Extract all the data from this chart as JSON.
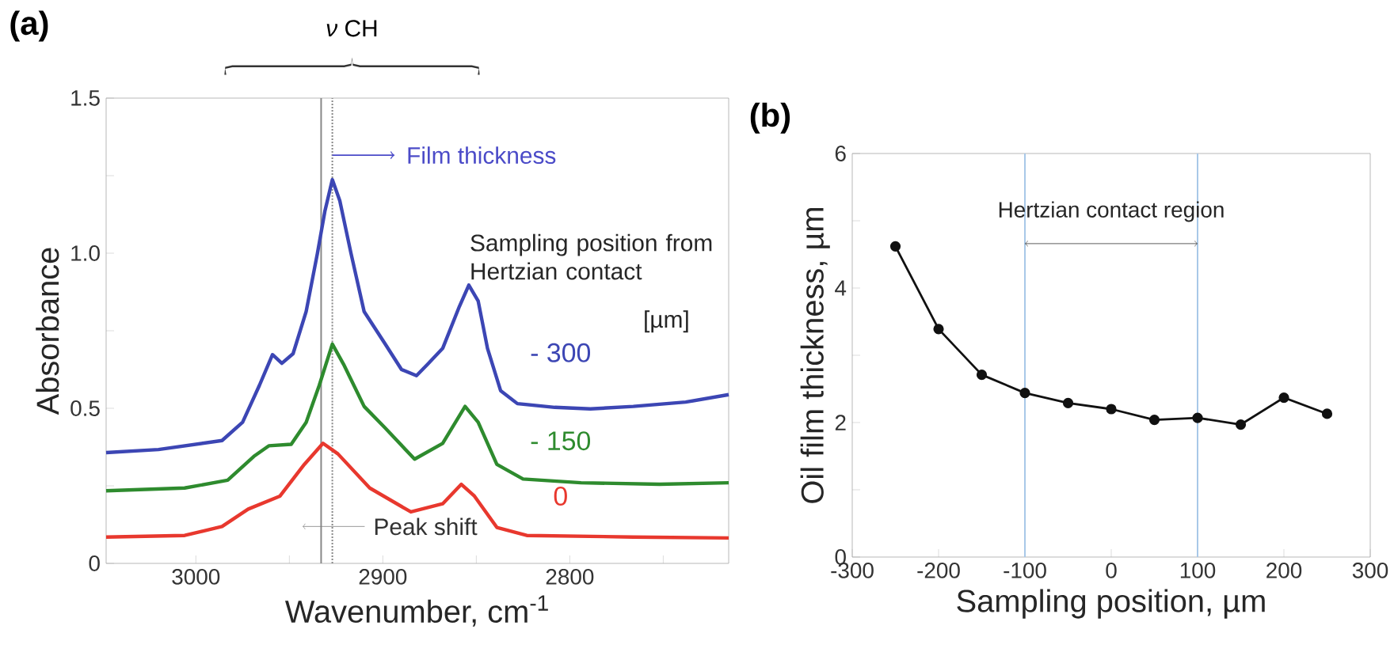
{
  "chart_data": [
    {
      "type": "line",
      "title": "(a)",
      "xlabel": "Wavenumber, cm$^{-1}$",
      "ylabel": "Absorbance",
      "marker": "none",
      "xlim": [
        3048,
        2715
      ],
      "xticks": [
        3000,
        {
          "value": 2950,
          "label": null
        },
        2900,
        {
          "value": 2850,
          "label": null
        },
        2800,
        {
          "value": 2750,
          "label": null
        }
      ],
      "ylim": [
        0,
        1.5
      ],
      "yticks": [
        0,
        {
          "value": 0.25,
          "label": null
        },
        0.5,
        {
          "value": 0.75,
          "label": null
        },
        {
          "value": 1,
          "label": "1.0"
        },
        {
          "value": 1.25,
          "label": null
        },
        1.5
      ],
      "series": [
        {
          "name": "- 300",
          "color": "#3c46b4",
          "x": [
            3048,
            3020,
            2986,
            2975,
            2966,
            2959,
            2954,
            2948,
            2941,
            2935,
            2931,
            2927,
            2923,
            2917,
            2910,
            2899,
            2890,
            2882,
            2876,
            2868,
            2859,
            2854,
            2849,
            2844,
            2837,
            2828,
            2808,
            2789,
            2766,
            2738,
            2715
          ],
          "values": [
            0.357,
            0.367,
            0.396,
            0.455,
            0.574,
            0.673,
            0.645,
            0.676,
            0.812,
            0.999,
            1.135,
            1.237,
            1.169,
            0.999,
            0.812,
            0.71,
            0.625,
            0.605,
            0.642,
            0.693,
            0.829,
            0.897,
            0.846,
            0.693,
            0.557,
            0.515,
            0.503,
            0.498,
            0.506,
            0.52,
            0.544
          ]
        },
        {
          "name": "- 150",
          "color": "#2e8b2e",
          "x": [
            3048,
            3006,
            2983,
            2969,
            2961,
            2949,
            2941,
            2934,
            2927,
            2921,
            2910,
            2899,
            2883,
            2868,
            2856,
            2849,
            2839,
            2825,
            2794,
            2752,
            2715
          ],
          "values": [
            0.234,
            0.243,
            0.268,
            0.345,
            0.379,
            0.384,
            0.455,
            0.574,
            0.707,
            0.642,
            0.506,
            0.438,
            0.336,
            0.387,
            0.506,
            0.455,
            0.319,
            0.272,
            0.26,
            0.255,
            0.26
          ]
        },
        {
          "name": "0",
          "color": "#e8382e",
          "x": [
            3048,
            3006,
            2986,
            2972,
            2955,
            2942,
            2932,
            2924,
            2907,
            2885,
            2868,
            2858,
            2851,
            2839,
            2823,
            2766,
            2715
          ],
          "values": [
            0.085,
            0.09,
            0.119,
            0.175,
            0.217,
            0.319,
            0.387,
            0.353,
            0.243,
            0.166,
            0.192,
            0.255,
            0.217,
            0.116,
            0.09,
            0.085,
            0.082
          ]
        }
      ],
      "ref_lines": [
        {
          "axis": "x",
          "value": 2927,
          "color": "#888888",
          "line_style": "dotted"
        },
        {
          "axis": "x",
          "value": 2933,
          "color": "#888888",
          "line_style": "solid"
        }
      ],
      "annotations": [
        "*ν* CH",
        {
          "text": "Film thickness",
          "x": 2927,
          "y": 1.316
        },
        {
          "text": "Peak shift",
          "x": 2933,
          "y": 0.119
        },
        "Sampling position from Hertzian contact",
        "[µm]"
      ]
    },
    {
      "type": "line",
      "title": "(b)",
      "xlabel": "Sampling position, µm",
      "ylabel": "Oil film thickness, µm",
      "marker": "circle",
      "xlim": [
        -300,
        300
      ],
      "xticks": [
        -300,
        -200,
        -100,
        0,
        100,
        200,
        300
      ],
      "ylim": [
        0,
        6
      ],
      "yticks": [
        0,
        {
          "value": 1,
          "label": null
        },
        2,
        {
          "value": 3,
          "label": null
        },
        4,
        {
          "value": 5,
          "label": null
        },
        6
      ],
      "x": [
        -250,
        -200,
        -150,
        -100,
        -50,
        0,
        50,
        100,
        150,
        200,
        250
      ],
      "series": [
        {
          "color": "#111111",
          "values": [
            4.62,
            3.39,
            2.71,
            2.44,
            2.29,
            2.2,
            2.04,
            2.07,
            1.97,
            2.37,
            2.13
          ]
        }
      ],
      "ref_lines": [
        {
          "axis": "x",
          "value": -100,
          "color": "#a8c8e8"
        },
        {
          "axis": "x",
          "value": 100,
          "color": "#a8c8e8"
        }
      ],
      "annotations": [
        "Hertzian contact region"
      ]
    }
  ]
}
